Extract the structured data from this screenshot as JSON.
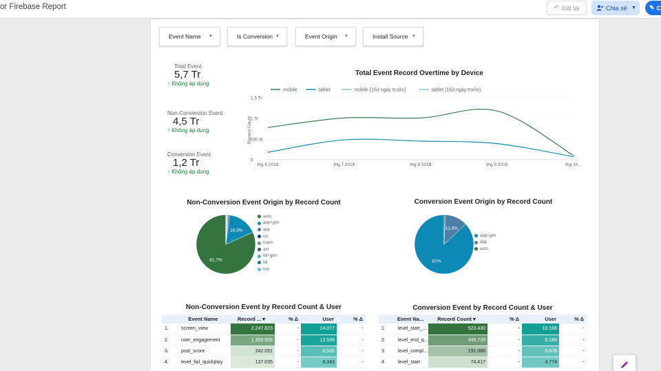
{
  "header": {
    "title": "or Firebase Report",
    "reset_label": "Đặt lại",
    "share_label": "Chia sẻ",
    "edit_label": "C"
  },
  "filters": [
    "Event Name",
    "Is Conversion",
    "Event Origin",
    "Install Source"
  ],
  "scorecards": [
    {
      "label": "Total Event",
      "value": "5,7 Tr",
      "delta": "Không áp dụng"
    },
    {
      "label": "Non-Conversion Event",
      "value": "4,5 Tr",
      "delta": "Không áp dụng"
    },
    {
      "label": "Conversion Event",
      "value": "1,2 Tr",
      "delta": "Không áp dụng"
    }
  ],
  "colors": {
    "mobile": "#3d7a55",
    "tablet": "#1a8aa6",
    "green_dark": "#33743f",
    "blue": "#0c8ab5",
    "accent": "#1a73e8"
  },
  "chart_data": [
    {
      "type": "line",
      "title": "Total Event Record Overtime by Device",
      "ylabel": "Record Count",
      "xlabel": "",
      "x": [
        "thg 6 2018",
        "thg 7 2018",
        "thg 8 2018",
        "thg 9 2018",
        "thg 10..."
      ],
      "yticks": [
        "0",
        "500 N",
        "1 Tr",
        "1,5 Tr"
      ],
      "ylim": [
        0,
        1500000
      ],
      "legend": [
        "mobile",
        "tablet",
        "mobile (153 ngày trước)",
        "tablet (153 ngày trước)"
      ],
      "series": [
        {
          "name": "mobile",
          "values": [
            780000,
            1010000,
            1010000,
            1180000,
            100000
          ]
        },
        {
          "name": "tablet",
          "values": [
            180000,
            480000,
            450000,
            390000,
            70000
          ]
        }
      ]
    },
    {
      "type": "pie",
      "title": "Non-Conversion Event Origin by Record Count",
      "labels": [
        "auto",
        "app+gtm",
        "app",
        "clx",
        "crash",
        "am",
        "fdl+gtm",
        "fdl",
        "fcm"
      ],
      "values": [
        81.7,
        16.3,
        0.8,
        0.4,
        0.3,
        0.2,
        0.1,
        0.1,
        0.1
      ],
      "slice_labels": [
        "81,7%",
        "16,3%",
        "",
        "",
        "",
        "",
        "",
        "",
        ""
      ],
      "colors": [
        "#33743f",
        "#0c8ab5",
        "#4b7fa6",
        "#17437a",
        "#6e8fa6",
        "#2f5f6b",
        "#4fb3b3",
        "#1f7a6e",
        "#5fc4d4"
      ]
    },
    {
      "type": "pie",
      "title": "Conversion Event Origin by Record Count",
      "labels": [
        "app+gtm",
        "app",
        "auto"
      ],
      "values": [
        87,
        12.4,
        0.6
      ],
      "slice_labels": [
        "87%",
        "12,4%",
        ""
      ],
      "colors": [
        "#0c8ab5",
        "#4b7fa6",
        "#33743f"
      ]
    },
    {
      "type": "table",
      "title": "Non-Conversion Event by Record Count & User",
      "columns": [
        "Event Name",
        "Record ...",
        "% Δ",
        "User",
        "% Δ"
      ],
      "rows": [
        {
          "idx": "1.",
          "name": "screen_view",
          "record": "2.247.823",
          "rd": "-",
          "user": "14.077",
          "ud": "-"
        },
        {
          "idx": "2.",
          "name": "user_engagement",
          "record": "1.359.958",
          "rd": "-",
          "user": "13.588",
          "ud": "-"
        },
        {
          "idx": "3.",
          "name": "post_score",
          "record": "242.051",
          "rd": "-",
          "user": "8.580",
          "ud": "-"
        },
        {
          "idx": "4.",
          "name": "level_fail_quickplay",
          "record": "137.035",
          "rd": "-",
          "user": "6.343",
          "ud": "-"
        }
      ],
      "record_fill": [
        1.0,
        0.6,
        0.11,
        0.06
      ],
      "user_fill": [
        1.0,
        0.96,
        0.61,
        0.45
      ]
    },
    {
      "type": "table",
      "title": "Conversion Event by Record Count & User",
      "columns": [
        "Event Na...",
        "Record Count",
        "% Δ",
        "User",
        "% Δ"
      ],
      "rows": [
        {
          "idx": "1.",
          "name": "level_start_...",
          "record": "523.430",
          "rd": "-",
          "user": "10.166",
          "ud": "-"
        },
        {
          "idx": "2.",
          "name": "level_end_q...",
          "record": "349.729",
          "rd": "-",
          "user": "8.168",
          "ud": "-"
        },
        {
          "idx": "3.",
          "name": "level_compl...",
          "record": "191.088",
          "rd": "-",
          "user": "5.676",
          "ud": "-"
        },
        {
          "idx": "4.",
          "name": "level_start",
          "record": "74.417",
          "rd": "-",
          "user": "4.774",
          "ud": "-"
        }
      ],
      "record_fill": [
        1.0,
        0.67,
        0.37,
        0.14
      ],
      "user_fill": [
        1.0,
        0.8,
        0.56,
        0.47
      ]
    }
  ]
}
